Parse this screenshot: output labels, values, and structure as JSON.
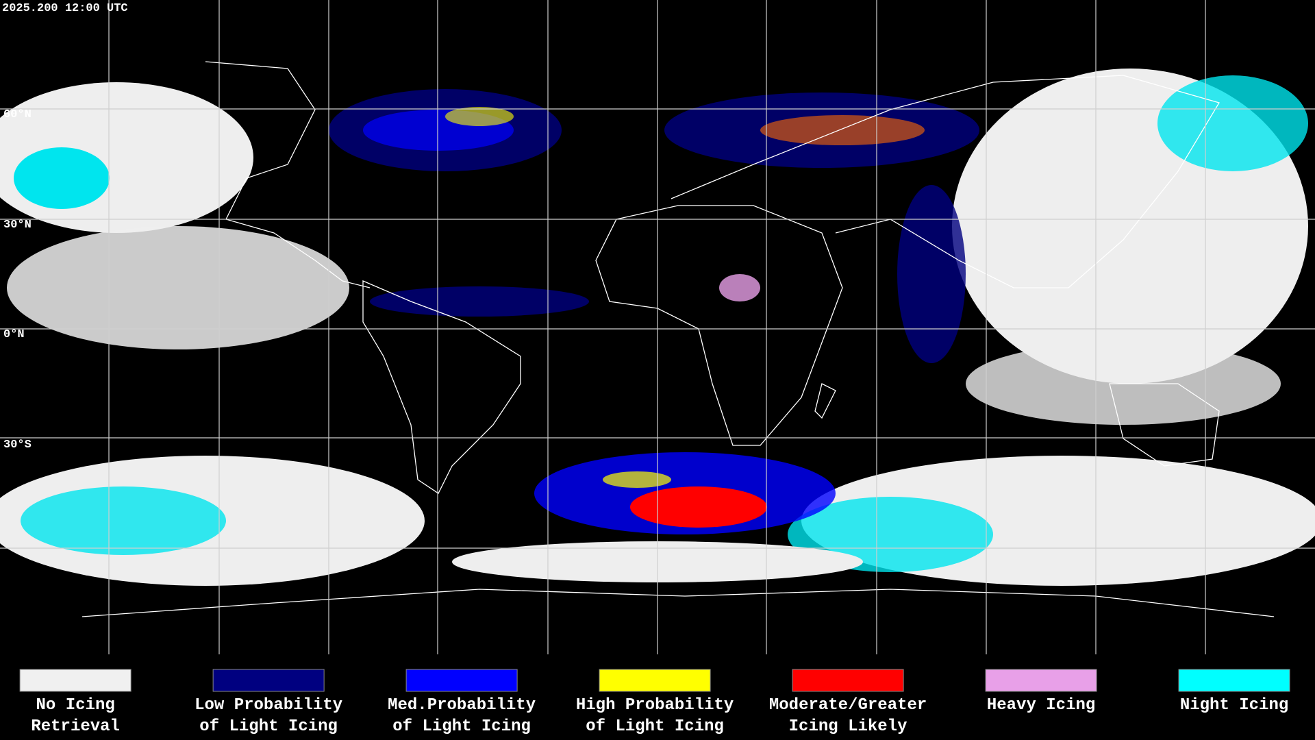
{
  "header": {
    "title": "2025.200 12:00 UTC"
  },
  "latitude_labels": [
    "60°N",
    "30°N",
    "0°N",
    "30°S"
  ],
  "legend": [
    {
      "lines": [
        "No Icing",
        "Retrieval"
      ],
      "color": "#f0f0f0"
    },
    {
      "lines": [
        "Low Probability",
        "of Light Icing"
      ],
      "color": "#000080"
    },
    {
      "lines": [
        "Med.Probability",
        "of Light Icing"
      ],
      "color": "#0000ff"
    },
    {
      "lines": [
        "High Probability",
        "of Light Icing"
      ],
      "color": "#ffff00"
    },
    {
      "lines": [
        "Moderate/Greater",
        "Icing Likely"
      ],
      "color": "#ff0000"
    },
    {
      "lines": [
        "Heavy Icing"
      ],
      "color": "#e8a0e8"
    },
    {
      "lines": [
        "Night Icing"
      ],
      "color": "#00ffff"
    }
  ]
}
